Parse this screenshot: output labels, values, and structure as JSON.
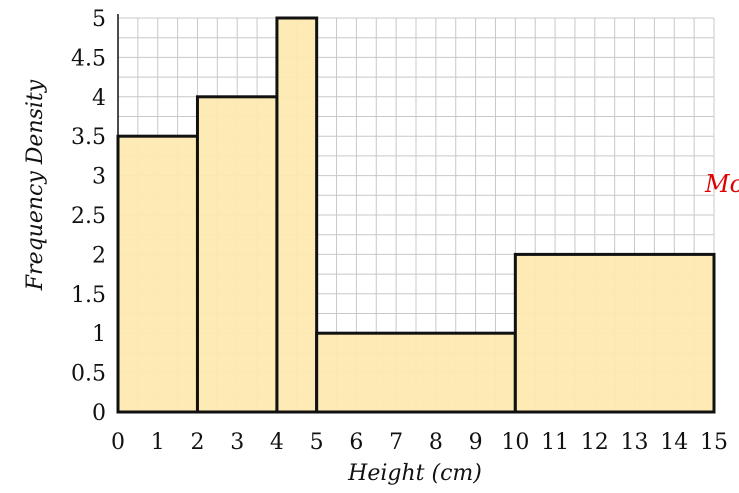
{
  "chart_data": {
    "type": "bar",
    "subtype": "histogram",
    "title": "",
    "xlabel": "Height (cm)",
    "ylabel": "Frequency Density",
    "xlim": [
      0,
      15
    ],
    "ylim": [
      0,
      5
    ],
    "x_ticks": [
      "0",
      "1",
      "2",
      "3",
      "4",
      "5",
      "6",
      "7",
      "8",
      "9",
      "10",
      "11",
      "12",
      "13",
      "14",
      "15"
    ],
    "y_ticks": [
      "0",
      "0.5",
      "1",
      "1.5",
      "2",
      "2.5",
      "3",
      "3.5",
      "4",
      "4.5",
      "5"
    ],
    "bins": [
      {
        "x0": 0,
        "x1": 2,
        "value": 3.5
      },
      {
        "x0": 2,
        "x1": 4,
        "value": 4
      },
      {
        "x0": 4,
        "x1": 5,
        "value": 5
      },
      {
        "x0": 5,
        "x1": 10,
        "value": 1
      },
      {
        "x0": 10,
        "x1": 15,
        "value": 2
      }
    ],
    "grid": true,
    "colors": {
      "bar_fill": "#fde9b0",
      "bar_stroke": "#111111",
      "grid": "#c8c8c8",
      "annotation": "#e00000"
    }
  },
  "annotation": {
    "text": "Mo"
  }
}
